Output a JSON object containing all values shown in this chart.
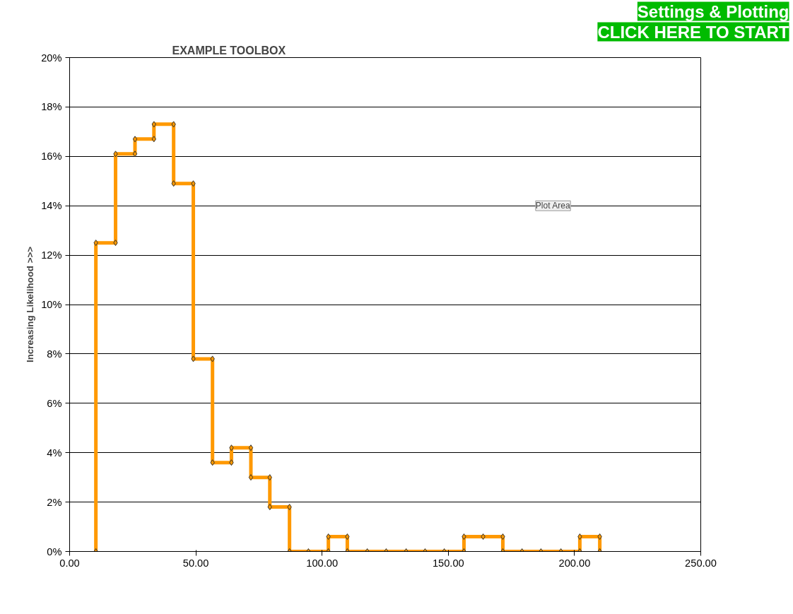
{
  "chart_data": {
    "type": "line",
    "title": "EXAMPLE TOOLBOX",
    "ylabel": "Increasing Likelihood >>>",
    "series": [
      {
        "color": "#ff9900",
        "x": [
          10.4,
          10.4,
          18.2,
          18.2,
          25.9,
          25.9,
          33.4,
          33.4,
          41.2,
          41.2,
          49,
          49,
          56.6,
          56.6,
          64.1,
          64.1,
          71.8,
          71.8,
          79.3,
          79.3,
          87.1,
          87.1,
          94.6,
          102.5,
          102.5,
          110,
          110,
          117.9,
          125.4,
          133.3,
          140.8,
          148.4,
          156.2,
          156.2,
          163.8,
          171.6,
          171.6,
          179.2,
          186.7,
          194.6,
          202.1,
          202.1,
          210,
          210
        ],
        "values": [
          0,
          12.5,
          12.5,
          16.1,
          16.1,
          16.7,
          16.7,
          17.3,
          17.3,
          14.9,
          14.9,
          7.8,
          7.8,
          3.6,
          3.6,
          4.2,
          4.2,
          3.0,
          3.0,
          1.8,
          1.8,
          0,
          0,
          0,
          0.6,
          0.6,
          0,
          0,
          0,
          0,
          0,
          0,
          0,
          0.6,
          0.6,
          0.6,
          0,
          0,
          0,
          0,
          0,
          0.6,
          0.6,
          0
        ]
      }
    ],
    "xlim": [
      0,
      250
    ],
    "xticks": [
      {
        "value": 0,
        "label": "0.00"
      },
      {
        "value": 50,
        "label": "50.00"
      },
      {
        "value": 100,
        "label": "100.00"
      },
      {
        "value": 150,
        "label": "150.00"
      },
      {
        "value": 200,
        "label": "200.00"
      },
      {
        "value": 250,
        "label": "250.00"
      }
    ],
    "ylim": [
      0,
      20
    ],
    "yticks": [
      {
        "value": 0,
        "label": "0%"
      },
      {
        "value": 2,
        "label": "2%"
      },
      {
        "value": 4,
        "label": "4%"
      },
      {
        "value": 6,
        "label": "6%"
      },
      {
        "value": 8,
        "label": "8%"
      },
      {
        "value": 10,
        "label": "10%"
      },
      {
        "value": 12,
        "label": "12%"
      },
      {
        "value": 14,
        "label": "14%"
      },
      {
        "value": 16,
        "label": "16%"
      },
      {
        "value": 18,
        "label": "18%"
      },
      {
        "value": 20,
        "label": "20%"
      }
    ],
    "grid": "y",
    "marker": "diamond",
    "line_style": "solid",
    "annotations": [
      "Settings & Plotting",
      "CLICK HERE TO START",
      "Plot Area"
    ]
  }
}
